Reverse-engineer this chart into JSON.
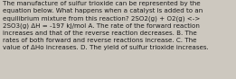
{
  "background_color": "#cdc8bf",
  "lines": [
    "The manufacture of sulfur trioxide can be represented by the",
    "equation below. What happens when a catalyst is added to an",
    "equilibrium mixture from this reaction? 2SO2(g) + O2(g) <->",
    "2SO3(g) ΔH = -197 kJ/mol A. The rate of the forward reaction",
    "increases and that of the reverse reaction decreases. B. The",
    "rates of both forward and reverse reactions increase. C. The",
    "value of ΔHo increases. D. The yield of sulfur trioxide increases."
  ],
  "font_size": 5.15,
  "text_color": "#1a1a1a",
  "fig_width": 2.61,
  "fig_height": 0.88,
  "dpi": 100
}
